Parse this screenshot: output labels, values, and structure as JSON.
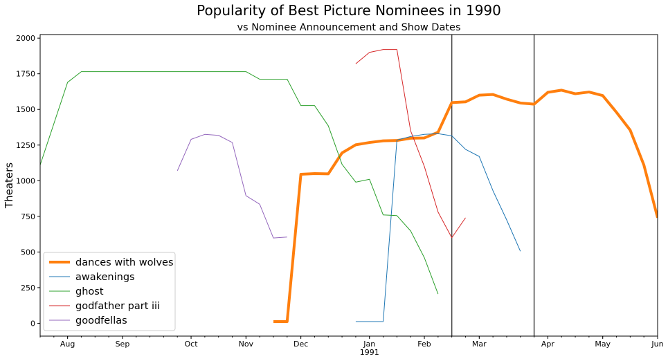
{
  "chart_data": {
    "type": "line",
    "title": "Popularity of Best Picture Nominees in 1990",
    "subtitle": "vs Nominee Announcement and Show Dates",
    "y_label": "Theaters",
    "xlim": [
      0,
      45
    ],
    "xticks": [
      {
        "value": 2,
        "label": "Aug"
      },
      {
        "value": 6,
        "label": "Sep"
      },
      {
        "value": 11,
        "label": "Oct"
      },
      {
        "value": 15,
        "label": "Nov"
      },
      {
        "value": 19,
        "label": "Dec"
      },
      {
        "value": 24,
        "label": "Jan"
      },
      {
        "value": 28,
        "label": "Feb"
      },
      {
        "value": 32,
        "label": "Mar"
      },
      {
        "value": 37,
        "label": "Apr"
      },
      {
        "value": 41,
        "label": "May"
      },
      {
        "value": 45,
        "label": "Jun"
      }
    ],
    "x_year": {
      "value": 24,
      "label": "1991"
    },
    "ylim": [
      -90,
      2025
    ],
    "yticks": [
      0,
      250,
      500,
      750,
      1000,
      1250,
      1500,
      1750,
      2000
    ],
    "vlines": [
      30,
      36
    ],
    "legend": "lower left",
    "series": [
      {
        "name": "dances with wolves",
        "color": "#ff7f0e",
        "linewidth": 4,
        "x": [
          17,
          18,
          19,
          20,
          21,
          22,
          23,
          24,
          25,
          26,
          27,
          28,
          29,
          30,
          31,
          32,
          33,
          34,
          35,
          36,
          37,
          38,
          39,
          40,
          41,
          42,
          43,
          44,
          45
        ],
        "values": [
          12,
          12,
          1045,
          1050,
          1048,
          1195,
          1252,
          1268,
          1280,
          1282,
          1298,
          1300,
          1340,
          1548,
          1553,
          1600,
          1605,
          1572,
          1545,
          1537,
          1620,
          1635,
          1610,
          1622,
          1597,
          1480,
          1355,
          1110,
          740
        ]
      },
      {
        "name": "awakenings",
        "color": "#1f77b4",
        "linewidth": 1,
        "x": [
          23,
          24,
          25,
          26,
          27,
          28,
          29,
          30,
          31,
          32,
          33,
          34,
          35
        ],
        "values": [
          12,
          12,
          12,
          1285,
          1310,
          1325,
          1330,
          1315,
          1220,
          1170,
          930,
          725,
          505
        ]
      },
      {
        "name": "ghost",
        "color": "#2ca02c",
        "linewidth": 1,
        "x": [
          0,
          1,
          2,
          3,
          4,
          5,
          6,
          7,
          8,
          9,
          10,
          11,
          12,
          13,
          14,
          15,
          16,
          17,
          18,
          19,
          20,
          21,
          22,
          23,
          24,
          25,
          26,
          27,
          28,
          29
        ],
        "values": [
          1110,
          1400,
          1690,
          1765,
          1765,
          1765,
          1765,
          1765,
          1765,
          1765,
          1765,
          1765,
          1765,
          1765,
          1765,
          1765,
          1712,
          1712,
          1712,
          1527,
          1527,
          1385,
          1115,
          990,
          1010,
          760,
          755,
          648,
          460,
          205
        ]
      },
      {
        "name": "godfather part iii",
        "color": "#d62728",
        "linewidth": 1,
        "x": [
          23,
          24,
          25,
          26,
          27,
          28,
          29,
          30,
          31
        ],
        "values": [
          1820,
          1900,
          1920,
          1920,
          1350,
          1100,
          780,
          600,
          740
        ]
      },
      {
        "name": "goodfellas",
        "color": "#9467bd",
        "linewidth": 1,
        "x": [
          10,
          11,
          12,
          13,
          14,
          15,
          16,
          17,
          18
        ],
        "values": [
          1070,
          1290,
          1325,
          1318,
          1268,
          895,
          835,
          598,
          605
        ]
      }
    ]
  }
}
